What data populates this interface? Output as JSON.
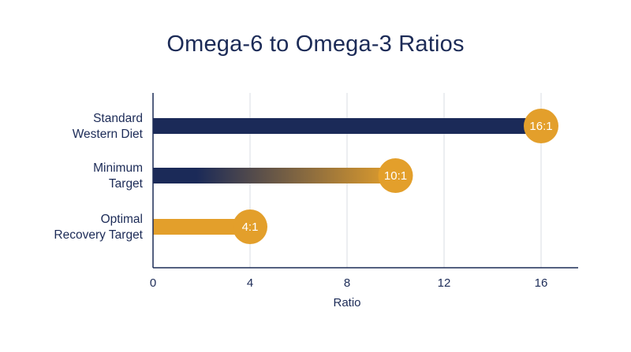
{
  "chart_data": {
    "type": "bar",
    "orientation": "horizontal",
    "title": "Omega-6 to Omega-3 Ratios",
    "xlabel": "Ratio",
    "ylabel": "",
    "xlim": [
      0,
      16
    ],
    "xticks": [
      0,
      4,
      8,
      12,
      16
    ],
    "grid": true,
    "categories": [
      [
        "Standard",
        "Western Diet"
      ],
      [
        "Minimum",
        "Target"
      ],
      [
        "Optimal",
        "Recovery Target"
      ]
    ],
    "values": [
      16,
      10,
      4
    ],
    "data_labels": [
      "16:1",
      "10:1",
      "4:1"
    ],
    "colors": {
      "navy": "#1b2a58",
      "gold": "#e39f2b",
      "grid": "#d9dce3",
      "axis": "#1c2b57"
    }
  }
}
